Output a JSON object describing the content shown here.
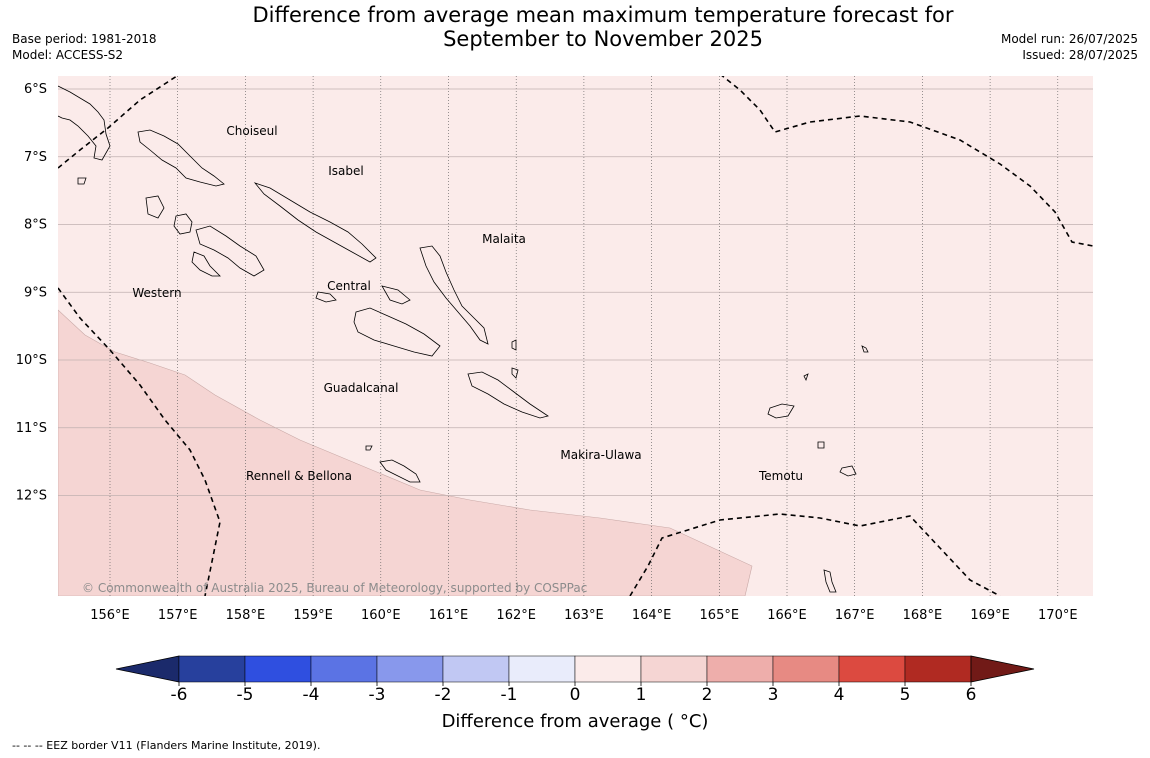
{
  "title": {
    "line1": "Difference from average mean maximum temperature forecast for",
    "line2": "September to November 2025"
  },
  "meta": {
    "base_period": "Base period: 1981-2018",
    "model": "Model: ACCESS-S2",
    "model_run": "Model run: 26/07/2025",
    "issued": "Issued: 28/07/2025"
  },
  "map": {
    "lat_labels": [
      "6°S",
      "7°S",
      "8°S",
      "9°S",
      "10°S",
      "11°S",
      "12°S"
    ],
    "lon_labels": [
      "156°E",
      "157°E",
      "158°E",
      "159°E",
      "160°E",
      "161°E",
      "162°E",
      "163°E",
      "164°E",
      "165°E",
      "166°E",
      "167°E",
      "168°E",
      "169°E",
      "170°E"
    ],
    "region_labels": [
      "Choiseul",
      "Isabel",
      "Malaita",
      "Western",
      "Central",
      "Guadalcanal",
      "Makira-Ulawa",
      "Rennell & Bellona",
      "Temotu"
    ],
    "copyright": "© Commonwealth of Australia 2025, Bureau of Meteorology, supported by COSPPac",
    "shading": [
      {
        "category": "0 to 1",
        "color": "#fbebea"
      },
      {
        "category": "1 to 2",
        "color": "#f5d5d3"
      }
    ]
  },
  "colorbar": {
    "ticks": [
      "-6",
      "-5",
      "-4",
      "-3",
      "-2",
      "-1",
      "0",
      "1",
      "2",
      "3",
      "4",
      "5",
      "6"
    ],
    "colors": [
      "#27409d",
      "#2f4fe0",
      "#5b73e4",
      "#8898ec",
      "#c1c8f3",
      "#e9ecfb",
      "#fbebea",
      "#f5d5d3",
      "#eeaeab",
      "#e78a83",
      "#dc4a40",
      "#b02a22"
    ],
    "under_color": "#1b2a6b",
    "over_color": "#711a17",
    "label": "Difference from average ( °C)"
  },
  "footnote": "--  --  -- EEZ border V11 (Flanders Marine Institute, 2019)."
}
